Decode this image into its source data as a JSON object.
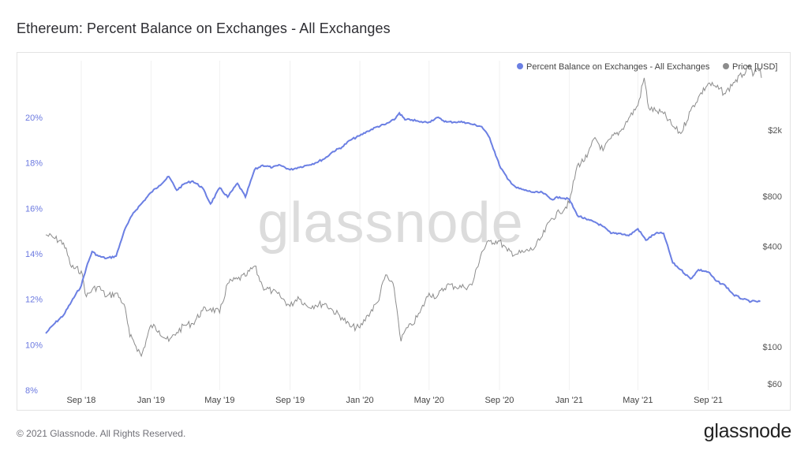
{
  "title": "Ethereum: Percent Balance on Exchanges - All Exchanges",
  "footer": {
    "copyright": "© 2021 Glassnode. All Rights Reserved.",
    "brand": "glassnode"
  },
  "watermark": "glassnode",
  "colors": {
    "balance": "#6b7fe3",
    "price": "#8c8c8c",
    "left_axis_text": "#6b79e0"
  },
  "chart_data": {
    "type": "line",
    "legend_position": "top-right",
    "legend": [
      {
        "name": "Percent Balance on Exchanges - All Exchanges",
        "color": "#6b7fe3"
      },
      {
        "name": "Price [USD]",
        "color": "#8c8c8c"
      }
    ],
    "x_ticks": [
      "Sep '18",
      "Jan '19",
      "May '19",
      "Sep '19",
      "Jan '20",
      "May '20",
      "Sep '20",
      "Jan '21",
      "May '21",
      "Sep '21"
    ],
    "x_tick_dates": [
      "2018-09-01",
      "2019-01-01",
      "2019-05-01",
      "2019-09-01",
      "2020-01-01",
      "2020-05-01",
      "2020-09-01",
      "2021-01-01",
      "2021-05-01",
      "2021-09-01"
    ],
    "x_range": [
      "2018-07-01",
      "2021-12-03"
    ],
    "y_left": {
      "ticks": [
        "8%",
        "10%",
        "12%",
        "14%",
        "16%",
        "18%",
        "20%"
      ],
      "tick_values": [
        8,
        10,
        12,
        14,
        16,
        18,
        20
      ],
      "range": [
        8,
        22.5
      ]
    },
    "y_right": {
      "scale": "log",
      "ticks": [
        "$60",
        "$100",
        "$400",
        "$800",
        "$2k"
      ],
      "tick_values": [
        60,
        100,
        400,
        800,
        2000
      ],
      "range": [
        55,
        5200
      ]
    },
    "series": [
      {
        "name": "Percent Balance on Exchanges - All Exchanges",
        "axis": "left",
        "points": [
          [
            "2018-07-01",
            10.5
          ],
          [
            "2018-07-15",
            10.9
          ],
          [
            "2018-08-01",
            11.3
          ],
          [
            "2018-08-15",
            11.9
          ],
          [
            "2018-09-01",
            12.6
          ],
          [
            "2018-09-10",
            13.4
          ],
          [
            "2018-09-20",
            14.1
          ],
          [
            "2018-10-01",
            13.9
          ],
          [
            "2018-10-15",
            13.8
          ],
          [
            "2018-11-01",
            13.9
          ],
          [
            "2018-11-15",
            15.0
          ],
          [
            "2018-12-01",
            15.8
          ],
          [
            "2018-12-15",
            16.2
          ],
          [
            "2019-01-01",
            16.7
          ],
          [
            "2019-01-15",
            17.0
          ],
          [
            "2019-02-01",
            17.4
          ],
          [
            "2019-02-15",
            16.8
          ],
          [
            "2019-03-01",
            17.1
          ],
          [
            "2019-03-15",
            17.2
          ],
          [
            "2019-04-01",
            16.9
          ],
          [
            "2019-04-15",
            16.2
          ],
          [
            "2019-05-01",
            16.9
          ],
          [
            "2019-05-15",
            16.5
          ],
          [
            "2019-06-01",
            17.1
          ],
          [
            "2019-06-15",
            16.5
          ],
          [
            "2019-07-01",
            17.7
          ],
          [
            "2019-07-15",
            17.9
          ],
          [
            "2019-08-01",
            17.8
          ],
          [
            "2019-08-15",
            17.9
          ],
          [
            "2019-09-01",
            17.7
          ],
          [
            "2019-09-15",
            17.8
          ],
          [
            "2019-10-01",
            17.9
          ],
          [
            "2019-10-15",
            18.0
          ],
          [
            "2019-11-01",
            18.2
          ],
          [
            "2019-11-15",
            18.5
          ],
          [
            "2019-12-01",
            18.7
          ],
          [
            "2019-12-15",
            19.0
          ],
          [
            "2020-01-01",
            19.2
          ],
          [
            "2020-01-15",
            19.4
          ],
          [
            "2020-02-01",
            19.6
          ],
          [
            "2020-02-15",
            19.7
          ],
          [
            "2020-03-01",
            19.9
          ],
          [
            "2020-03-10",
            20.2
          ],
          [
            "2020-03-20",
            19.9
          ],
          [
            "2020-04-01",
            19.9
          ],
          [
            "2020-04-15",
            19.8
          ],
          [
            "2020-05-01",
            19.8
          ],
          [
            "2020-05-15",
            20.0
          ],
          [
            "2020-06-01",
            19.8
          ],
          [
            "2020-06-15",
            19.8
          ],
          [
            "2020-07-01",
            19.8
          ],
          [
            "2020-07-15",
            19.7
          ],
          [
            "2020-08-01",
            19.6
          ],
          [
            "2020-08-15",
            19.1
          ],
          [
            "2020-09-01",
            17.9
          ],
          [
            "2020-09-15",
            17.3
          ],
          [
            "2020-10-01",
            16.9
          ],
          [
            "2020-10-15",
            16.8
          ],
          [
            "2020-11-01",
            16.7
          ],
          [
            "2020-11-15",
            16.7
          ],
          [
            "2020-12-01",
            16.4
          ],
          [
            "2020-12-15",
            16.5
          ],
          [
            "2021-01-01",
            16.4
          ],
          [
            "2021-01-15",
            15.7
          ],
          [
            "2021-02-01",
            15.5
          ],
          [
            "2021-02-15",
            15.4
          ],
          [
            "2021-03-01",
            15.2
          ],
          [
            "2021-03-15",
            14.9
          ],
          [
            "2021-04-01",
            14.9
          ],
          [
            "2021-04-15",
            14.8
          ],
          [
            "2021-05-01",
            15.1
          ],
          [
            "2021-05-15",
            14.6
          ],
          [
            "2021-06-01",
            14.9
          ],
          [
            "2021-06-15",
            14.9
          ],
          [
            "2021-07-01",
            13.6
          ],
          [
            "2021-07-15",
            13.3
          ],
          [
            "2021-08-01",
            12.9
          ],
          [
            "2021-08-15",
            13.3
          ],
          [
            "2021-09-01",
            13.2
          ],
          [
            "2021-09-15",
            12.8
          ],
          [
            "2021-10-01",
            12.6
          ],
          [
            "2021-10-15",
            12.2
          ],
          [
            "2021-11-01",
            12.0
          ],
          [
            "2021-11-15",
            11.9
          ],
          [
            "2021-12-01",
            11.9
          ]
        ]
      },
      {
        "name": "Price [USD]",
        "axis": "right",
        "points": [
          [
            "2018-07-01",
            470
          ],
          [
            "2018-07-15",
            450
          ],
          [
            "2018-08-01",
            420
          ],
          [
            "2018-08-15",
            300
          ],
          [
            "2018-09-01",
            285
          ],
          [
            "2018-09-10",
            200
          ],
          [
            "2018-09-20",
            220
          ],
          [
            "2018-10-01",
            230
          ],
          [
            "2018-10-15",
            200
          ],
          [
            "2018-11-01",
            210
          ],
          [
            "2018-11-15",
            180
          ],
          [
            "2018-11-25",
            115
          ],
          [
            "2018-12-01",
            110
          ],
          [
            "2018-12-15",
            88
          ],
          [
            "2019-01-01",
            135
          ],
          [
            "2019-01-15",
            125
          ],
          [
            "2019-02-01",
            108
          ],
          [
            "2019-02-15",
            122
          ],
          [
            "2019-03-01",
            135
          ],
          [
            "2019-03-15",
            138
          ],
          [
            "2019-04-01",
            165
          ],
          [
            "2019-04-15",
            170
          ],
          [
            "2019-05-01",
            160
          ],
          [
            "2019-05-15",
            240
          ],
          [
            "2019-06-01",
            255
          ],
          [
            "2019-06-15",
            265
          ],
          [
            "2019-07-01",
            305
          ],
          [
            "2019-07-15",
            230
          ],
          [
            "2019-08-01",
            215
          ],
          [
            "2019-08-15",
            200
          ],
          [
            "2019-09-01",
            175
          ],
          [
            "2019-09-15",
            200
          ],
          [
            "2019-10-01",
            175
          ],
          [
            "2019-10-15",
            178
          ],
          [
            "2019-11-01",
            182
          ],
          [
            "2019-11-15",
            165
          ],
          [
            "2019-12-01",
            150
          ],
          [
            "2019-12-15",
            132
          ],
          [
            "2020-01-01",
            130
          ],
          [
            "2020-01-15",
            155
          ],
          [
            "2020-02-01",
            185
          ],
          [
            "2020-02-15",
            270
          ],
          [
            "2020-03-01",
            225
          ],
          [
            "2020-03-13",
            108
          ],
          [
            "2020-03-20",
            125
          ],
          [
            "2020-04-01",
            135
          ],
          [
            "2020-04-15",
            160
          ],
          [
            "2020-05-01",
            210
          ],
          [
            "2020-05-15",
            200
          ],
          [
            "2020-06-01",
            235
          ],
          [
            "2020-06-15",
            230
          ],
          [
            "2020-07-01",
            228
          ],
          [
            "2020-07-15",
            235
          ],
          [
            "2020-08-01",
            370
          ],
          [
            "2020-08-15",
            430
          ],
          [
            "2020-09-01",
            430
          ],
          [
            "2020-09-15",
            375
          ],
          [
            "2020-10-01",
            360
          ],
          [
            "2020-10-15",
            370
          ],
          [
            "2020-11-01",
            390
          ],
          [
            "2020-11-15",
            460
          ],
          [
            "2020-12-01",
            590
          ],
          [
            "2020-12-15",
            640
          ],
          [
            "2021-01-01",
            730
          ],
          [
            "2021-01-15",
            1220
          ],
          [
            "2021-02-01",
            1370
          ],
          [
            "2021-02-15",
            1800
          ],
          [
            "2021-03-01",
            1500
          ],
          [
            "2021-03-15",
            1780
          ],
          [
            "2021-04-01",
            1970
          ],
          [
            "2021-04-15",
            2350
          ],
          [
            "2021-05-01",
            2800
          ],
          [
            "2021-05-12",
            4100
          ],
          [
            "2021-05-20",
            2700
          ],
          [
            "2021-06-01",
            2600
          ],
          [
            "2021-06-15",
            2500
          ],
          [
            "2021-07-01",
            2100
          ],
          [
            "2021-07-15",
            1900
          ],
          [
            "2021-08-01",
            2600
          ],
          [
            "2021-08-15",
            3150
          ],
          [
            "2021-09-01",
            3800
          ],
          [
            "2021-09-15",
            3600
          ],
          [
            "2021-10-01",
            3300
          ],
          [
            "2021-10-15",
            3850
          ],
          [
            "2021-11-01",
            4300
          ],
          [
            "2021-11-10",
            4750
          ],
          [
            "2021-11-20",
            4350
          ],
          [
            "2021-12-01",
            4600
          ],
          [
            "2021-12-03",
            4100
          ]
        ]
      }
    ]
  }
}
